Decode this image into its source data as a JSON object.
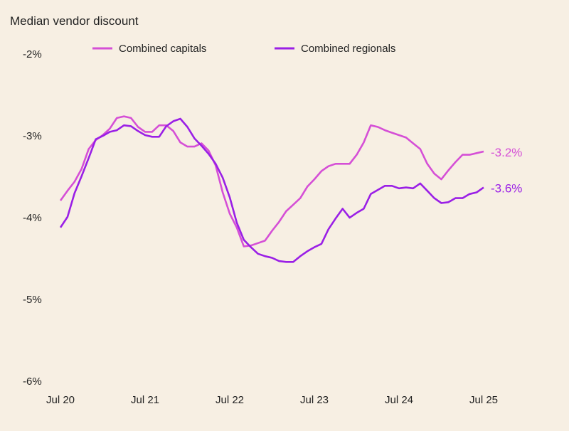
{
  "chart_data": {
    "type": "line",
    "title": "Median vendor discount",
    "xlabel": "",
    "ylabel": "",
    "ylim": [
      -6,
      -2
    ],
    "yticks": [
      "-2%",
      "-3%",
      "-4%",
      "-5%",
      "-6%"
    ],
    "ytick_values": [
      -2,
      -3,
      -4,
      -5,
      -6
    ],
    "xticks": [
      "Jul 20",
      "Jul 21",
      "Jul 22",
      "Jul 23",
      "Jul 24",
      "Jul 25"
    ],
    "x_start": "2020-07",
    "x_end": "2025-07",
    "x_frequency": "monthly",
    "grid": false,
    "legend": "top",
    "series": [
      {
        "name": "Combined capitals",
        "color": "#d54fd6",
        "end_label": "-3.2%",
        "values": [
          -3.8,
          -3.68,
          -3.57,
          -3.41,
          -3.17,
          -3.06,
          -3.0,
          -2.92,
          -2.79,
          -2.77,
          -2.79,
          -2.9,
          -2.96,
          -2.96,
          -2.88,
          -2.88,
          -2.95,
          -3.09,
          -3.14,
          -3.14,
          -3.1,
          -3.19,
          -3.37,
          -3.7,
          -3.96,
          -4.13,
          -4.36,
          -4.35,
          -4.32,
          -4.29,
          -4.17,
          -4.06,
          -3.93,
          -3.85,
          -3.77,
          -3.63,
          -3.54,
          -3.44,
          -3.38,
          -3.35,
          -3.35,
          -3.35,
          -3.24,
          -3.09,
          -2.88,
          -2.9,
          -2.94,
          -2.97,
          -3.0,
          -3.03,
          -3.1,
          -3.17,
          -3.35,
          -3.47,
          -3.54,
          -3.43,
          -3.33,
          -3.24,
          -3.24,
          -3.22,
          -3.2
        ]
      },
      {
        "name": "Combined regionals",
        "color": "#9a1fe6",
        "end_label": "-3.6%",
        "values": [
          -4.13,
          -4.0,
          -3.71,
          -3.5,
          -3.28,
          -3.05,
          -3.01,
          -2.96,
          -2.94,
          -2.88,
          -2.89,
          -2.95,
          -3.0,
          -3.02,
          -3.02,
          -2.89,
          -2.83,
          -2.8,
          -2.9,
          -3.04,
          -3.13,
          -3.23,
          -3.35,
          -3.52,
          -3.76,
          -4.07,
          -4.28,
          -4.37,
          -4.45,
          -4.48,
          -4.5,
          -4.54,
          -4.55,
          -4.55,
          -4.48,
          -4.42,
          -4.37,
          -4.33,
          -4.15,
          -4.02,
          -3.9,
          -4.01,
          -3.95,
          -3.9,
          -3.72,
          -3.67,
          -3.62,
          -3.62,
          -3.65,
          -3.64,
          -3.65,
          -3.59,
          -3.68,
          -3.77,
          -3.83,
          -3.82,
          -3.77,
          -3.77,
          -3.72,
          -3.7,
          -3.64
        ]
      }
    ]
  }
}
